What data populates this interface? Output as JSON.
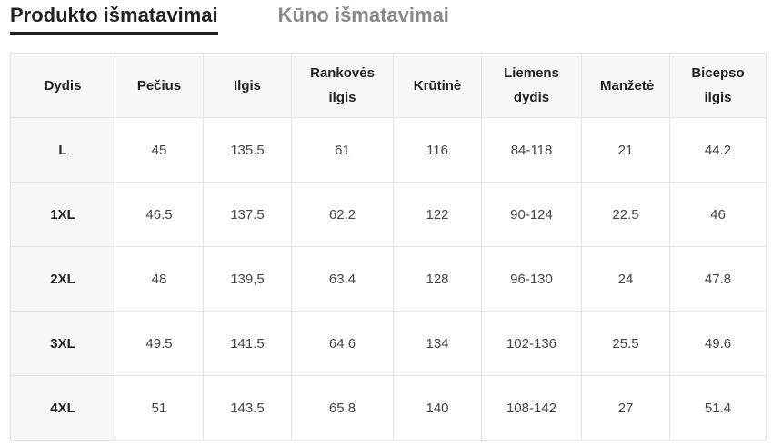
{
  "tabs": {
    "items": [
      "Produkto išmatavimai",
      "Kūno išmatavimai"
    ],
    "active": 0
  },
  "table": {
    "headers": [
      "Dydis",
      "Pečius",
      "Ilgis",
      "Rankovės ilgis",
      "Krūtinė",
      "Liemens dydis",
      "Manžetė",
      "Bicepso ilgis"
    ],
    "rows": [
      [
        "L",
        "45",
        "135.5",
        "61",
        "116",
        "84-118",
        "21",
        "44.2"
      ],
      [
        "1XL",
        "46.5",
        "137.5",
        "62.2",
        "122",
        "90-124",
        "22.5",
        "46"
      ],
      [
        "2XL",
        "48",
        "139,5",
        "63.4",
        "128",
        "96-130",
        "24",
        "47.8"
      ],
      [
        "3XL",
        "49.5",
        "141.5",
        "64.6",
        "134",
        "102-136",
        "25.5",
        "49.6"
      ],
      [
        "4XL",
        "51",
        "143.5",
        "65.8",
        "140",
        "108-142",
        "27",
        "51.4"
      ]
    ]
  }
}
